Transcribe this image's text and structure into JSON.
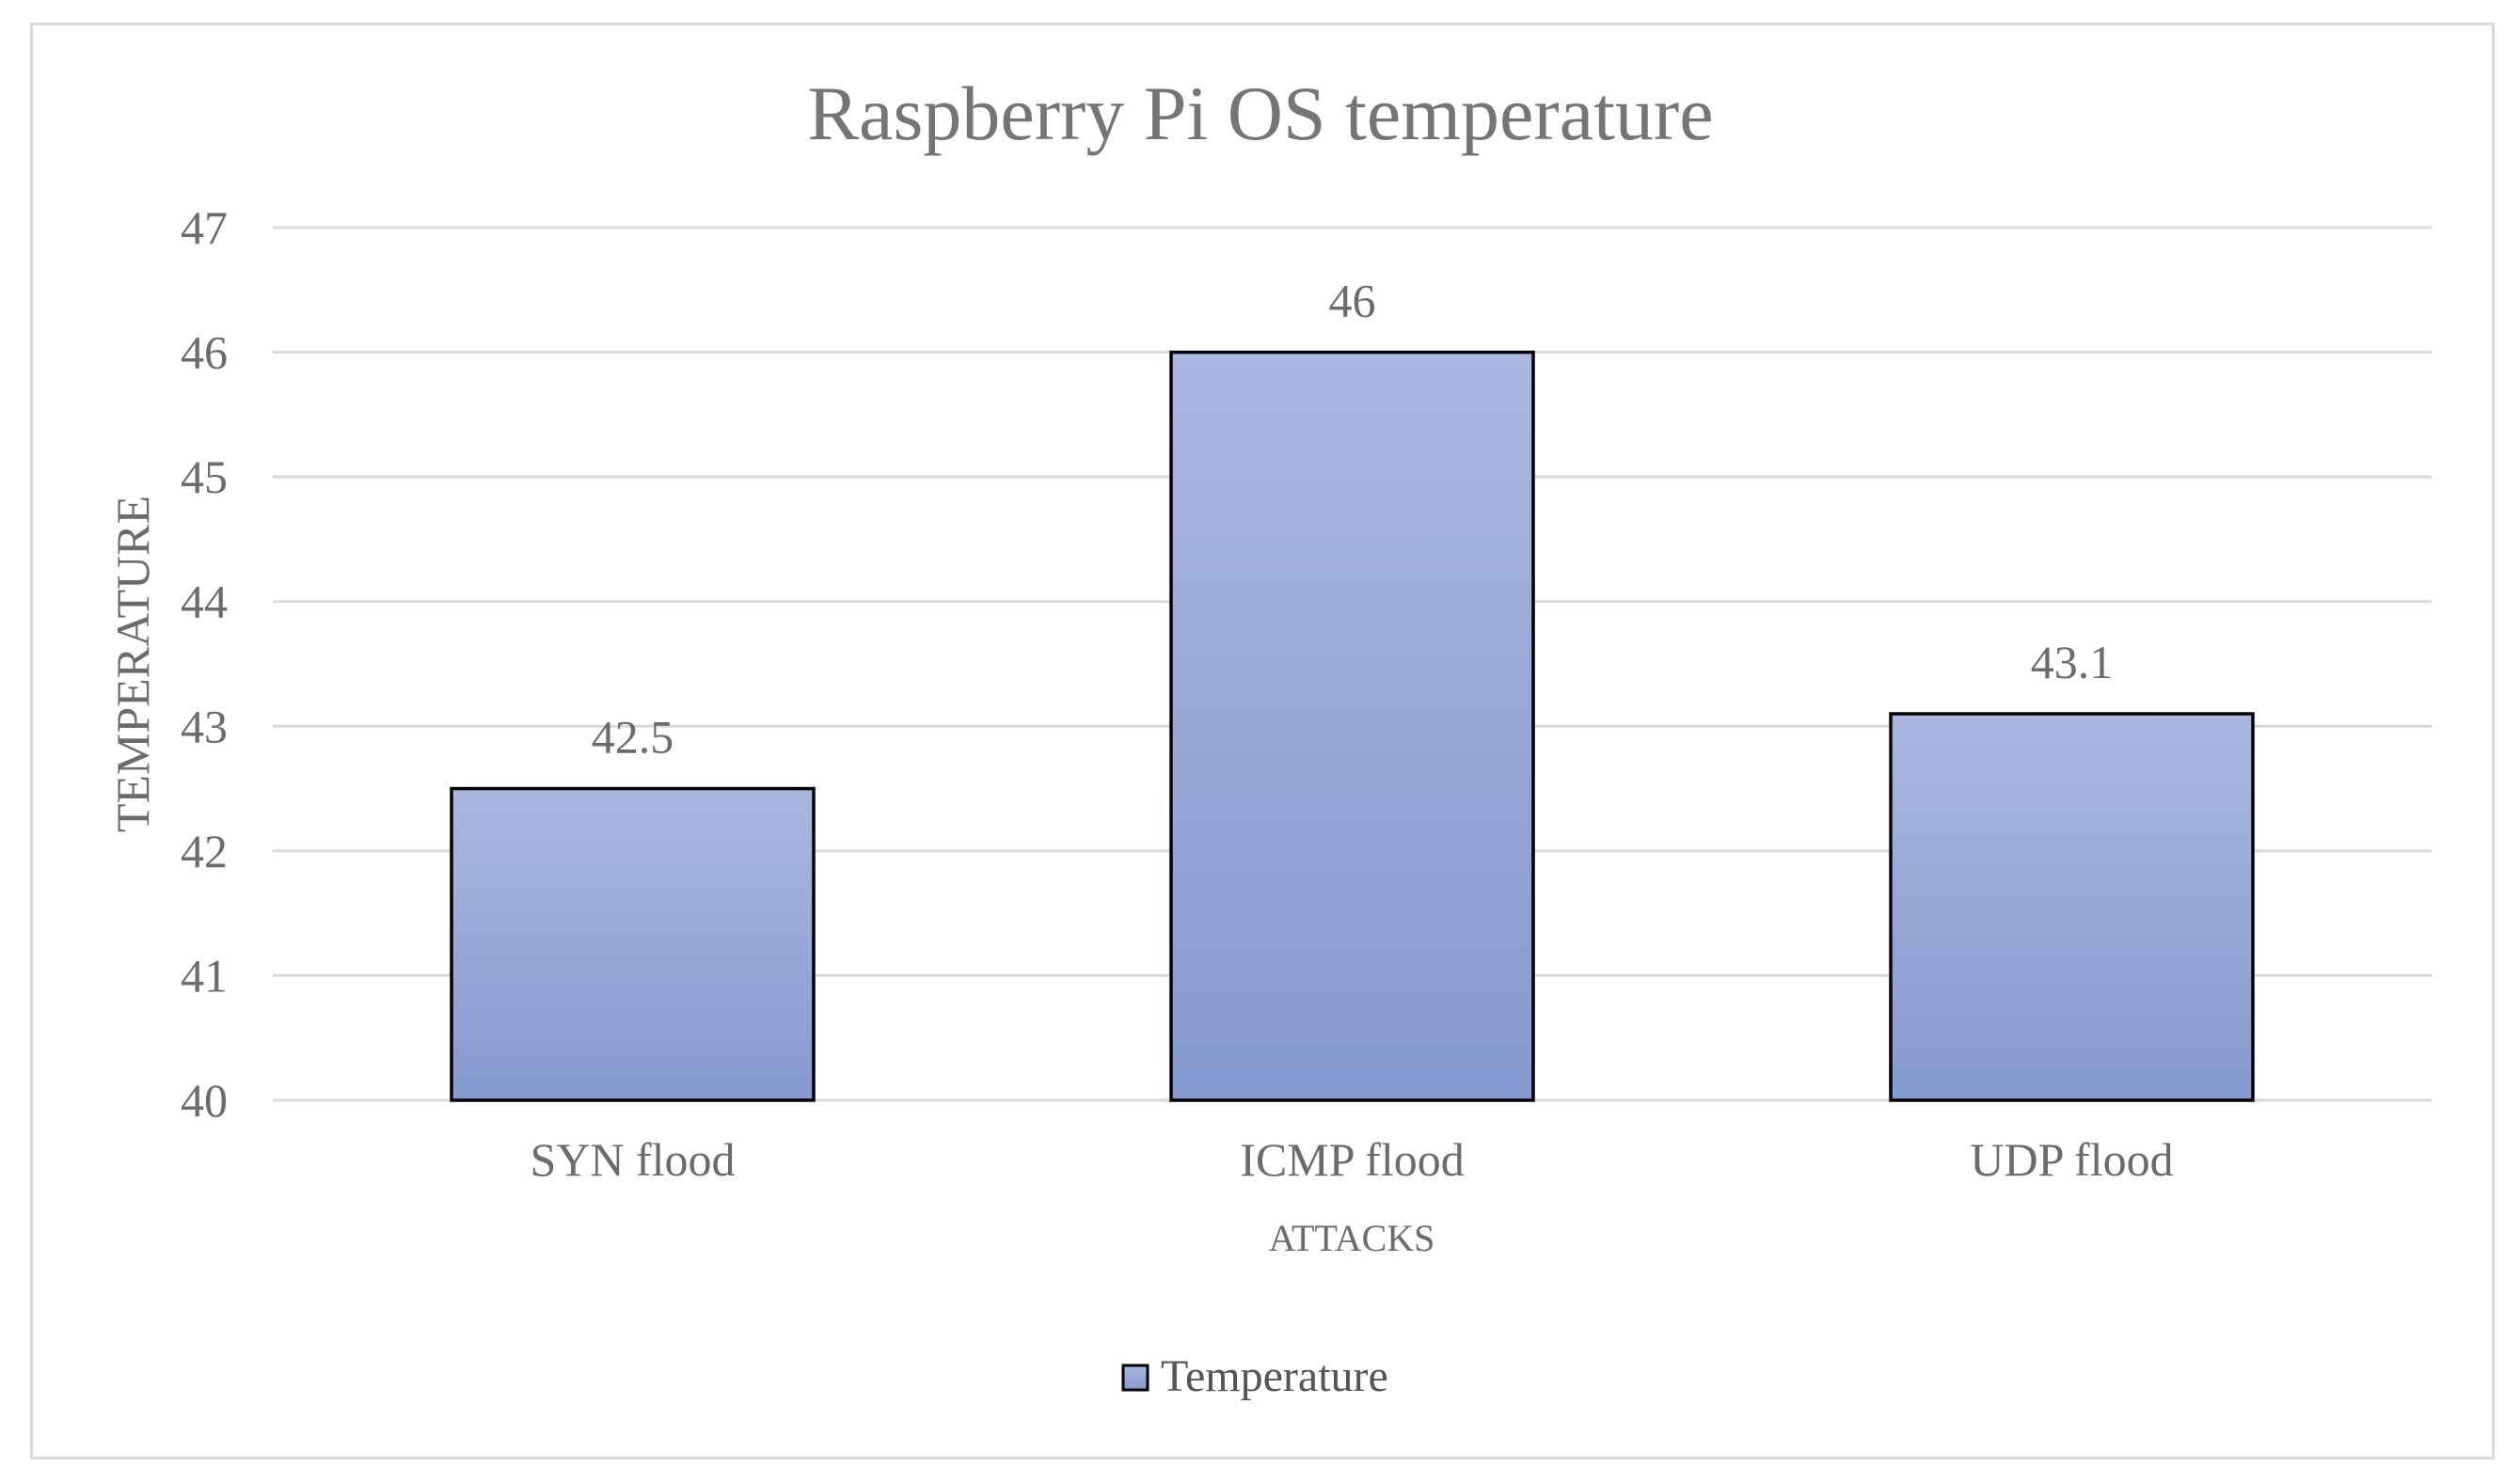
{
  "chart_data": {
    "type": "bar",
    "title": "Raspberry Pi OS temperature",
    "xlabel": "ATTACKS",
    "ylabel": "TEMPERATURE",
    "categories": [
      "SYN flood",
      "ICMP flood",
      "UDP flood"
    ],
    "series": [
      {
        "name": "Temperature",
        "values": [
          42.5,
          46,
          43.1
        ]
      }
    ],
    "data_labels": [
      "42.5",
      "46",
      "43.1"
    ],
    "ylim": [
      40,
      47
    ],
    "yticks": [
      40,
      41,
      42,
      43,
      44,
      45,
      46,
      47
    ],
    "grid": true,
    "legend_position": "bottom",
    "colors": {
      "bar_top": "#aab8e0",
      "bar_bottom": "#8499cf",
      "bar_border": "#000000",
      "gridline": "#d9d9d9",
      "text": "#6b6b6b"
    }
  }
}
